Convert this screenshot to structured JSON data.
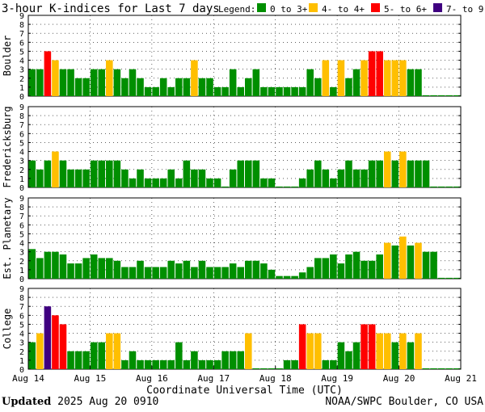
{
  "chart_data": {
    "type": "bar",
    "title": "3-hour K-indices for Last 7 days",
    "legend_label": "Legend:",
    "legend": [
      {
        "label": "0 to 3+",
        "color": "#008f00"
      },
      {
        "label": "4- to 4+",
        "color": "#ffbf00"
      },
      {
        "label": "5- to 6+",
        "color": "#ff0000"
      },
      {
        "label": "7- to 9",
        "color": "#3f0080"
      }
    ],
    "xlabel": "Coordinate Universal Time (UTC)",
    "x_ticks": [
      "Aug 14",
      "Aug 15",
      "Aug 16",
      "Aug 17",
      "Aug 18",
      "Aug 19",
      "Aug 20",
      "Aug 21"
    ],
    "ylim": [
      0,
      9
    ],
    "y_ticks": [
      "0",
      "1",
      "2",
      "3",
      "4",
      "5",
      "6",
      "7",
      "8",
      "9"
    ],
    "grid": true,
    "panels": [
      {
        "ylabel": "Boulder",
        "values": [
          3,
          3,
          5,
          4,
          3,
          3,
          2,
          2,
          3,
          3,
          4,
          3,
          2,
          3,
          2,
          1,
          1,
          2,
          1,
          2,
          2,
          4,
          2,
          2,
          1,
          1,
          3,
          1,
          2,
          3,
          1,
          1,
          1,
          1,
          1,
          1,
          3,
          2,
          4,
          1,
          4,
          2,
          3,
          4,
          5,
          5,
          4,
          4,
          4,
          3,
          3,
          0.1,
          0.1,
          0.1,
          0.1,
          0.1
        ]
      },
      {
        "ylabel": "Fredericksburg",
        "values": [
          3,
          2,
          3,
          4,
          3,
          2,
          2,
          2,
          3,
          3,
          3,
          3,
          2,
          1,
          2,
          1,
          1,
          1,
          2,
          1,
          3,
          2,
          2,
          1,
          1,
          0.1,
          2,
          3,
          3,
          3,
          1,
          1,
          0.1,
          0.1,
          0.1,
          1,
          2,
          3,
          2,
          1,
          2,
          3,
          2,
          2,
          3,
          3,
          4,
          3,
          4,
          3,
          3,
          3,
          0.1,
          0.1,
          0.1,
          0.1
        ]
      },
      {
        "ylabel": "Est. Planetary",
        "values": [
          3.3,
          2.3,
          3,
          3,
          2.7,
          1.7,
          1.7,
          2.3,
          2.7,
          2.3,
          2.3,
          2,
          1.3,
          1.3,
          2,
          1.3,
          1.3,
          1.3,
          2,
          1.7,
          2,
          1.3,
          2,
          1.3,
          1.3,
          1.3,
          1.7,
          1.3,
          2,
          2,
          1.7,
          1,
          0.3,
          0.3,
          0.3,
          0.7,
          1.3,
          2.3,
          2.3,
          2.7,
          1.7,
          2.7,
          3,
          2,
          2,
          2.7,
          4,
          3.7,
          4.7,
          3.7,
          4,
          3,
          3,
          0.1,
          0.1,
          0.1
        ]
      },
      {
        "ylabel": "College",
        "values": [
          3,
          4,
          7,
          6,
          5,
          2,
          2,
          2,
          3,
          3,
          4,
          4,
          1,
          2,
          1,
          1,
          1,
          1,
          1,
          3,
          1,
          2,
          1,
          1,
          1,
          2,
          2,
          2,
          4,
          0.1,
          0.1,
          0.1,
          0.1,
          1,
          1,
          5,
          4,
          4,
          1,
          1,
          3,
          2,
          3,
          5,
          5,
          4,
          4,
          3,
          4,
          3,
          4,
          0.1,
          0.1,
          0.1,
          0.1,
          0.1
        ]
      }
    ]
  },
  "footer": {
    "updated_label": "Updated",
    "updated_value": "2025 Aug 20 0910",
    "source": "NOAA/SWPC Boulder, CO USA"
  }
}
